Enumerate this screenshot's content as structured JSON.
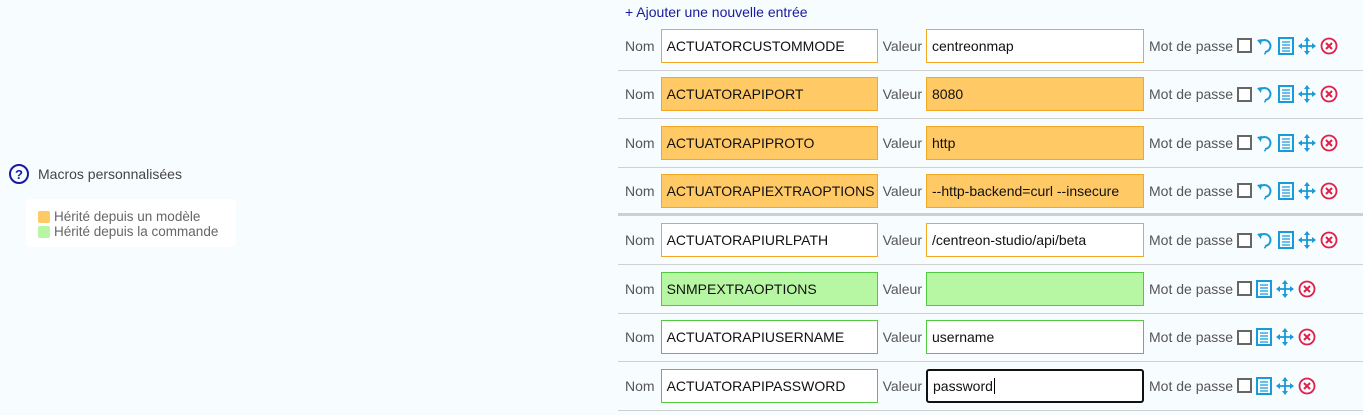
{
  "add_entry_label": "+ Ajouter une nouvelle entrée",
  "help": {
    "label": "Macros personnalisées",
    "icon": "help-circle-icon"
  },
  "legend": [
    {
      "label": "Hérité depuis un modèle",
      "color": "#ffc966"
    },
    {
      "label": "Hérité depuis la commande",
      "color": "#b7f7a3"
    }
  ],
  "labels": {
    "name": "Nom",
    "value": "Valeur",
    "password": "Mot de passe"
  },
  "colors": {
    "template": "#ffc966",
    "template_border": "#f5a623",
    "command": "#b7f7a3",
    "command_border": "#52c93f",
    "icon": "#1a9ad6",
    "delete": "#e0204a"
  },
  "macros": [
    {
      "name": "ACTUATORCUSTOMMODE",
      "value": "centreonmap",
      "state": "template-overridden",
      "password": false,
      "revert": true
    },
    {
      "name": "ACTUATORAPIPORT",
      "value": "8080",
      "state": "template",
      "password": false,
      "revert": true
    },
    {
      "name": "ACTUATORAPIPROTO",
      "value": "http",
      "state": "template",
      "password": false,
      "revert": true
    },
    {
      "name": "ACTUATORAPIEXTRAOPTIONS",
      "value": "--http-backend=curl --insecure",
      "state": "template",
      "password": false,
      "revert": true
    },
    {
      "name": "ACTUATORAPIURLPATH",
      "value": "/centreon-studio/api/beta",
      "state": "template-overridden",
      "password": false,
      "revert": true
    },
    {
      "name": "SNMPEXTRAOPTIONS",
      "value": "",
      "state": "command",
      "password": false,
      "revert": false
    },
    {
      "name": "ACTUATORAPIUSERNAME",
      "value": "username",
      "state": "command-overridden",
      "password": false,
      "revert": false
    },
    {
      "name": "ACTUATORAPIPASSWORD",
      "value": "password",
      "state": "command-overridden",
      "password": false,
      "revert": false,
      "focused": true
    }
  ]
}
